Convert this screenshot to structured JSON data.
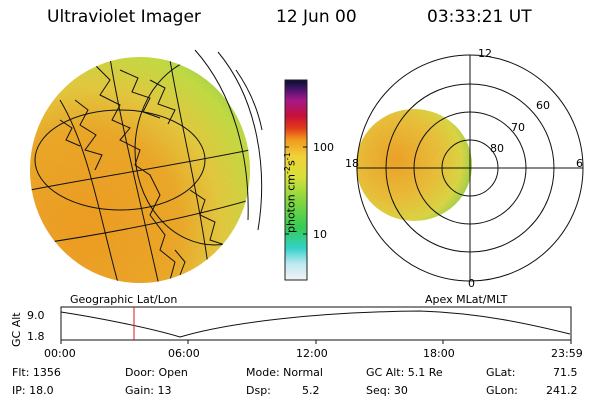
{
  "header": {
    "title": "Ultraviolet Imager",
    "date": "12 Jun 00",
    "time": "03:33:21 UT"
  },
  "colorbar": {
    "label_main": "photon cm",
    "label_sup1": "-2",
    "label_mid": "s",
    "label_sup2": "-1",
    "ticks": [
      "100",
      "10"
    ]
  },
  "polar": {
    "lat_labels": [
      "60",
      "70",
      "80"
    ],
    "mlt_labels": [
      "12",
      "18",
      "6",
      "0"
    ]
  },
  "captions": {
    "left": "Geographic Lat/Lon",
    "right": "Apex MLat/MLT"
  },
  "timeline": {
    "ylabel": "GC Alt",
    "y_ticks": [
      "9.0",
      "1.8"
    ],
    "x_ticks": [
      "00:00",
      "06:00",
      "12:00",
      "18:00",
      "23:59"
    ]
  },
  "info": {
    "flt": "Flt: 1356",
    "ip": "IP: 18.0",
    "door": "Door: Open",
    "gain": "Gain: 13",
    "mode": "Mode: Normal",
    "dsp_label": "Dsp:",
    "dsp_value": "5.2",
    "gcalt": "GC Alt: 5.1 Re",
    "seq": "Seq: 30",
    "glat_label": "GLat:",
    "glat_value": "71.5",
    "glon_label": "GLon:",
    "glon_value": "241.2"
  },
  "colors": {
    "warm": "#f3a21c",
    "mid": "#e9d641",
    "cool": "#8fd34a",
    "marker": "#d21e1e"
  }
}
